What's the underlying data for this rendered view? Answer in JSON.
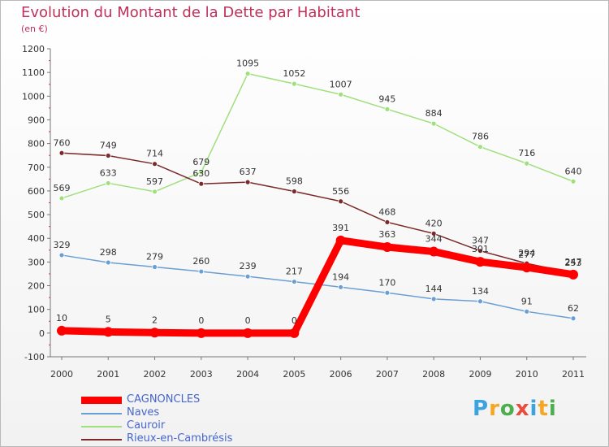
{
  "title": "Evolution du Montant de la Dette par Habitant",
  "subtitle": "(en €)",
  "brand": {
    "text": "Proxiti",
    "letter_colors": [
      "#3da3e0",
      "#f5a623",
      "#4cae4c",
      "#e94b3c",
      "#3da3e0",
      "#f5a623",
      "#4cae4c"
    ]
  },
  "chart_data": {
    "type": "line",
    "title": "Evolution du Montant de la Dette par Habitant",
    "subtitle": "(en €)",
    "x": [
      "2000",
      "2001",
      "2002",
      "2003",
      "2004",
      "2005",
      "2006",
      "2007",
      "2008",
      "2009",
      "2010",
      "2011"
    ],
    "ylim": [
      -100,
      1200
    ],
    "yticks": [
      "-100",
      "0",
      "100",
      "200",
      "300",
      "400",
      "500",
      "600",
      "700",
      "800",
      "900",
      "1000",
      "1100",
      "1200"
    ],
    "grid": false,
    "legend_position": "bottom-left",
    "series": [
      {
        "name": "CAGNONCLES",
        "color": "#ff0000",
        "values": [
          10,
          5,
          2,
          0,
          0,
          0,
          391,
          363,
          344,
          301,
          277,
          247
        ],
        "labels": [
          "10",
          "5",
          "2",
          "0",
          "0",
          "0",
          "391",
          "363",
          "344",
          "301",
          "277",
          "247"
        ]
      },
      {
        "name": "Naves",
        "color": "#6a9fd4",
        "values": [
          329,
          298,
          279,
          260,
          239,
          217,
          194,
          170,
          144,
          134,
          91,
          62
        ],
        "labels": [
          "329",
          "298",
          "279",
          "260",
          "239",
          "217",
          "194",
          "170",
          "144",
          "134",
          "91",
          "62"
        ]
      },
      {
        "name": "Cauroir",
        "color": "#9fe07c",
        "values": [
          569,
          633,
          597,
          679,
          1095,
          1052,
          1007,
          945,
          884,
          786,
          716,
          640
        ],
        "labels": [
          "569",
          "633",
          "597",
          "679",
          "1095",
          "1052",
          "1007",
          "945",
          "884",
          "786",
          "716",
          "640"
        ]
      },
      {
        "name": "Rieux-en-Cambrésis",
        "color": "#7a2a2a",
        "values": [
          760,
          749,
          714,
          630,
          637,
          598,
          556,
          468,
          420,
          347,
          294,
          253
        ],
        "labels": [
          "760",
          "749",
          "714",
          "630",
          "637",
          "598",
          "556",
          "468",
          "420",
          "347",
          "294",
          "253"
        ]
      }
    ]
  }
}
